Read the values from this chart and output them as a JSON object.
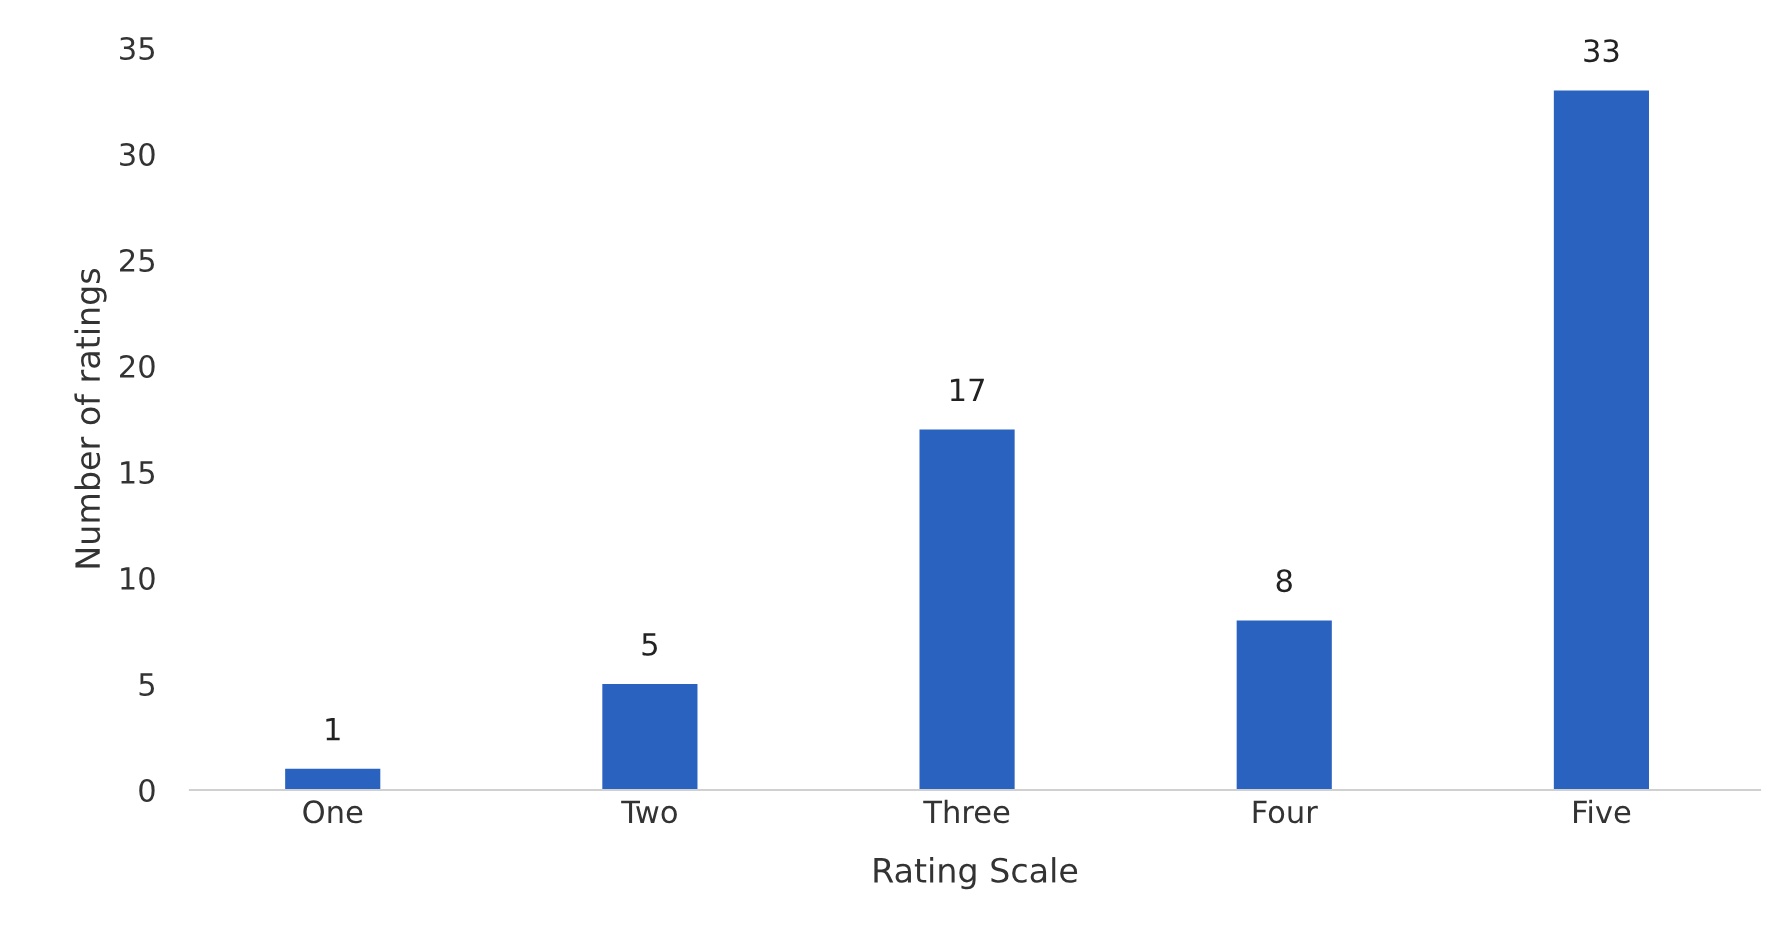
{
  "chart_data": {
    "type": "bar",
    "xlabel": "Rating Scale",
    "ylabel": "Number of ratings",
    "categories": [
      "One",
      "Two",
      "Three",
      "Four",
      "Five"
    ],
    "values": [
      1,
      5,
      17,
      8,
      33
    ],
    "color": "#2a62c0",
    "ylim": [
      0,
      35
    ],
    "yticks": [
      0,
      5,
      10,
      15,
      20,
      25,
      30,
      35
    ],
    "data_labels": true,
    "grid": false,
    "legend": false
  }
}
